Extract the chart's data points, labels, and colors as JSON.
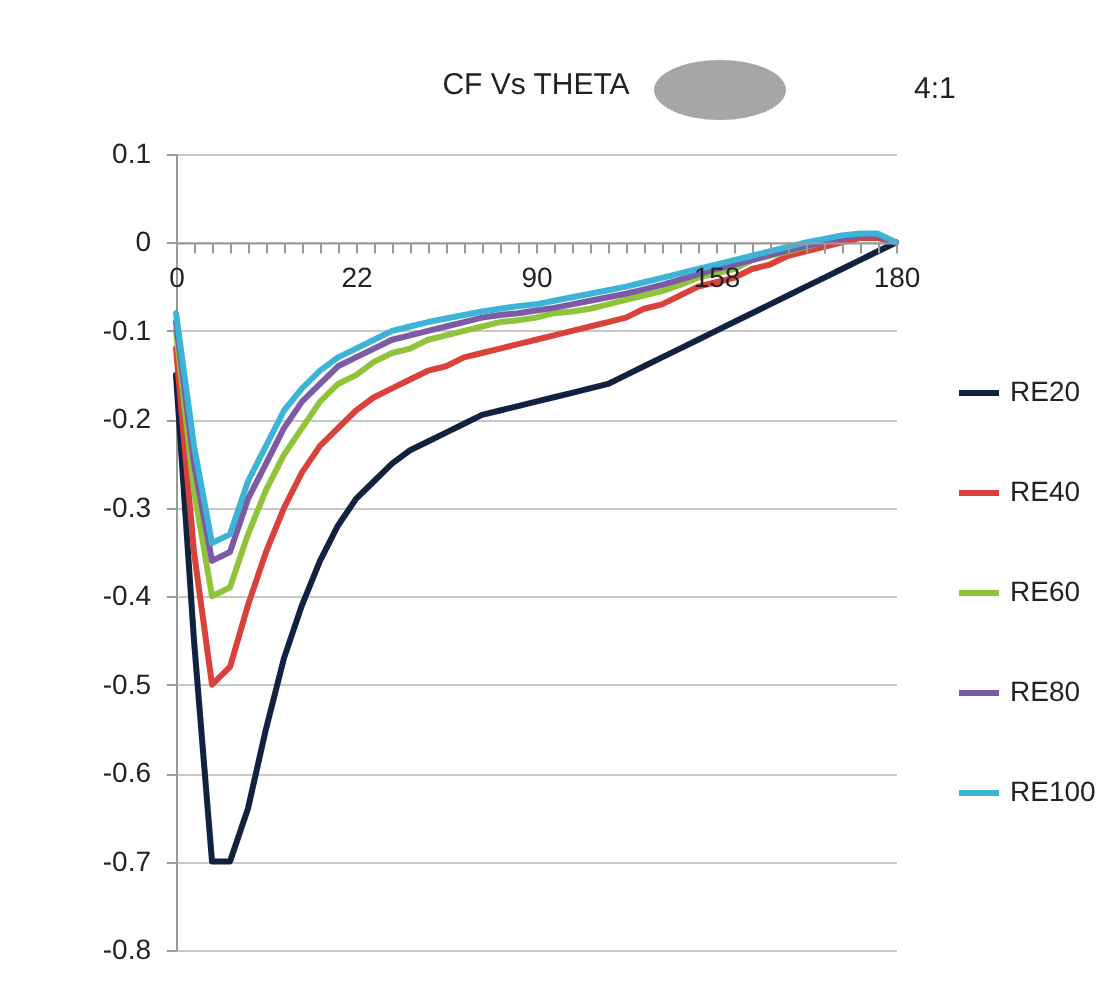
{
  "chart_data": {
    "type": "line",
    "title": "CF Vs THETA",
    "annotations": [
      "4:1"
    ],
    "categories": [
      "0",
      null,
      null,
      null,
      null,
      null,
      null,
      null,
      null,
      null,
      "22",
      null,
      null,
      null,
      null,
      null,
      null,
      null,
      null,
      null,
      "90",
      null,
      null,
      null,
      null,
      null,
      null,
      null,
      null,
      null,
      "158",
      null,
      null,
      null,
      null,
      null,
      null,
      null,
      null,
      null,
      "180"
    ],
    "ylim": [
      -0.8,
      0.1
    ],
    "yticks": [
      0.1,
      0,
      -0.1,
      -0.2,
      -0.3,
      -0.4,
      -0.5,
      -0.6,
      -0.7,
      -0.8
    ],
    "grid": "y",
    "legend": "right",
    "marker": "none",
    "line_style": "solid",
    "series": [
      {
        "name": "RE20",
        "color": "#10223f",
        "values": [
          -0.15,
          -0.45,
          -0.7,
          -0.7,
          -0.64,
          -0.55,
          -0.47,
          -0.41,
          -0.36,
          -0.32,
          -0.29,
          -0.27,
          -0.25,
          -0.235,
          -0.225,
          -0.215,
          -0.205,
          -0.195,
          -0.19,
          -0.185,
          -0.18,
          -0.175,
          -0.17,
          -0.165,
          -0.16,
          -0.15,
          -0.14,
          -0.13,
          -0.12,
          -0.11,
          -0.1,
          -0.09,
          -0.08,
          -0.07,
          -0.06,
          -0.05,
          -0.04,
          -0.03,
          -0.02,
          -0.01,
          0.0
        ]
      },
      {
        "name": "RE40",
        "color": "#d9413a",
        "values": [
          -0.12,
          -0.35,
          -0.5,
          -0.48,
          -0.41,
          -0.35,
          -0.3,
          -0.26,
          -0.23,
          -0.21,
          -0.19,
          -0.175,
          -0.165,
          -0.155,
          -0.145,
          -0.14,
          -0.13,
          -0.125,
          -0.12,
          -0.115,
          -0.11,
          -0.105,
          -0.1,
          -0.095,
          -0.09,
          -0.085,
          -0.075,
          -0.07,
          -0.06,
          -0.05,
          -0.045,
          -0.04,
          -0.03,
          -0.025,
          -0.015,
          -0.01,
          -0.005,
          0.0,
          0.005,
          0.005,
          0.0
        ]
      },
      {
        "name": "RE60",
        "color": "#8fc33a",
        "values": [
          -0.1,
          -0.28,
          -0.4,
          -0.39,
          -0.33,
          -0.28,
          -0.24,
          -0.21,
          -0.18,
          -0.16,
          -0.15,
          -0.135,
          -0.125,
          -0.12,
          -0.11,
          -0.105,
          -0.1,
          -0.095,
          -0.09,
          -0.088,
          -0.085,
          -0.08,
          -0.078,
          -0.075,
          -0.07,
          -0.065,
          -0.06,
          -0.055,
          -0.048,
          -0.04,
          -0.035,
          -0.03,
          -0.02,
          -0.015,
          -0.01,
          -0.005,
          0.0,
          null,
          null,
          null,
          null
        ]
      },
      {
        "name": "RE80",
        "color": "#7d5aa6",
        "values": [
          -0.09,
          -0.25,
          -0.36,
          -0.35,
          -0.29,
          -0.25,
          -0.21,
          -0.18,
          -0.16,
          -0.14,
          -0.13,
          -0.12,
          -0.11,
          -0.105,
          -0.1,
          -0.095,
          -0.09,
          -0.085,
          -0.082,
          -0.08,
          -0.077,
          -0.074,
          -0.07,
          -0.066,
          -0.062,
          -0.058,
          -0.053,
          -0.048,
          -0.042,
          -0.036,
          -0.03,
          -0.025,
          -0.02,
          -0.014,
          -0.009,
          -0.004,
          0.0,
          0.005,
          0.008,
          0.008,
          0.0
        ]
      },
      {
        "name": "RE100",
        "color": "#3cb4d8",
        "values": [
          -0.08,
          -0.23,
          -0.34,
          -0.33,
          -0.27,
          -0.23,
          -0.19,
          -0.165,
          -0.145,
          -0.13,
          -0.12,
          -0.11,
          -0.1,
          -0.095,
          -0.09,
          -0.086,
          -0.082,
          -0.078,
          -0.075,
          -0.072,
          -0.07,
          -0.066,
          -0.062,
          -0.058,
          -0.054,
          -0.05,
          -0.045,
          -0.04,
          -0.035,
          -0.03,
          -0.025,
          -0.02,
          -0.015,
          -0.01,
          -0.005,
          0.0,
          0.004,
          0.008,
          0.01,
          0.01,
          0.0
        ]
      }
    ]
  }
}
